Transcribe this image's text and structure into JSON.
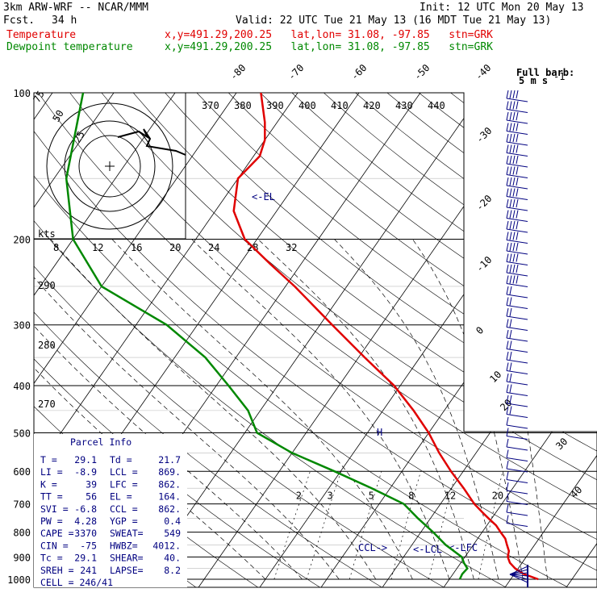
{
  "header": {
    "model": "3km ARW-WRF -- NCAR/MMM",
    "init": "Init: 12 UTC Mon 20 May 13",
    "fcst_label": "Fcst.",
    "fcst_value": "34 h",
    "valid": "Valid: 22 UTC Tue 21 May 13 (16 MDT Tue 21 May 13)",
    "temp_label": "Temperature",
    "dew_label": "Dewpoint temperature",
    "loc_text": "x,y=491.29,200.25   lat,lon= 31.08, -97.85   stn=GRK"
  },
  "colors": {
    "temperature": "#e00000",
    "dewpoint": "#008800",
    "parcel": "#000080",
    "grid": "#000000"
  },
  "chart_data": {
    "type": "line",
    "y_axis": {
      "kind": "log-pressure",
      "unit": "hPa",
      "range": [
        1000,
        100
      ],
      "ticks": [
        100,
        200,
        300,
        400,
        500,
        600,
        700,
        800,
        900,
        1000
      ]
    },
    "isotherm_labels": [
      "-80",
      "-70",
      "-60",
      "-50",
      "-40",
      "-30",
      "-20",
      "-10",
      "0",
      "10",
      "20",
      "30",
      "40"
    ],
    "isotherm_values": [
      -80,
      -70,
      -60,
      -50,
      -40,
      -30,
      -20,
      -10,
      0,
      10,
      20,
      30,
      40
    ],
    "theta_labels": [
      "370",
      "380",
      "390",
      "400",
      "410",
      "420",
      "430",
      "440"
    ],
    "theta_left_labels": [
      "290",
      "280",
      "270"
    ],
    "mixing_ratio_labels": [
      "2",
      "3",
      "5",
      "8",
      "12",
      "20"
    ],
    "hodograph": {
      "unit": "kts",
      "ring_labels": [
        "75",
        "50",
        "25"
      ],
      "speed_labels": [
        "8",
        "12",
        "16",
        "20",
        "24",
        "28",
        "32"
      ]
    },
    "wind_barb_legend": {
      "title": "Full barb:",
      "value": "5 m s",
      "exp": "-1"
    },
    "series": [
      {
        "name": "Temperature",
        "points": [
          [
            1000,
            34.5
          ],
          [
            975,
            31.5
          ],
          [
            950,
            29.5
          ],
          [
            925,
            28
          ],
          [
            900,
            27
          ],
          [
            875,
            26.5
          ],
          [
            850,
            25.5
          ],
          [
            825,
            24.5
          ],
          [
            800,
            23
          ],
          [
            775,
            21.5
          ],
          [
            750,
            19.5
          ],
          [
            725,
            17.5
          ],
          [
            700,
            15.5
          ],
          [
            650,
            12
          ],
          [
            600,
            8
          ],
          [
            550,
            4
          ],
          [
            500,
            0
          ],
          [
            450,
            -5
          ],
          [
            400,
            -11
          ],
          [
            350,
            -19
          ],
          [
            300,
            -28
          ],
          [
            250,
            -38.5
          ],
          [
            225,
            -45
          ],
          [
            200,
            -52
          ],
          [
            175,
            -57
          ],
          [
            150,
            -60
          ],
          [
            135,
            -59
          ],
          [
            125,
            -60
          ],
          [
            115,
            -62
          ],
          [
            100,
            -66
          ]
        ]
      },
      {
        "name": "Dewpoint temperature",
        "points": [
          [
            1000,
            21.7
          ],
          [
            975,
            21.5
          ],
          [
            950,
            21.7
          ],
          [
            925,
            20.5
          ],
          [
            900,
            19.5
          ],
          [
            850,
            15.5
          ],
          [
            800,
            12
          ],
          [
            750,
            8
          ],
          [
            700,
            4
          ],
          [
            650,
            -3
          ],
          [
            600,
            -11
          ],
          [
            550,
            -20
          ],
          [
            500,
            -28
          ],
          [
            450,
            -32
          ],
          [
            400,
            -38
          ],
          [
            350,
            -45
          ],
          [
            300,
            -55
          ],
          [
            250,
            -70
          ],
          [
            200,
            -80
          ],
          [
            150,
            -88
          ],
          [
            100,
            -95
          ]
        ]
      }
    ],
    "annotations": [
      "<-EL",
      "CCL->",
      "<-LCL",
      "<-LFC"
    ],
    "parcel_info": {
      "title": "Parcel Info",
      "rows": [
        [
          "T  =",
          "29.1",
          "Td =",
          "21.7"
        ],
        [
          "LI =",
          "-8.9",
          "LCL =",
          "869."
        ],
        [
          "K  =",
          "39",
          "LFC =",
          "862."
        ],
        [
          "TT =",
          "56",
          "EL =",
          "164."
        ],
        [
          "SVI =",
          "-6.8",
          "CCL =",
          "862."
        ],
        [
          "PW =",
          "4.28",
          "YGP =",
          "0.4"
        ],
        [
          "CAPE =",
          "3370",
          "SWEAT=",
          "549"
        ],
        [
          "CIN =",
          "-75",
          "HWBZ=",
          "4012."
        ],
        [
          "Tc =",
          "29.1",
          "SHEAR=",
          "40."
        ],
        [
          "SREH =",
          "241",
          "LAPSE=",
          "8.2"
        ]
      ],
      "cell": "CELL = 246/41"
    }
  }
}
